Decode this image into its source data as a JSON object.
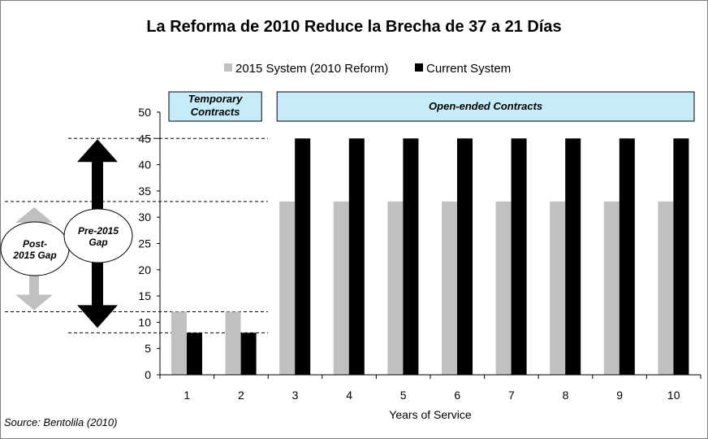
{
  "chart_data": {
    "type": "bar",
    "title": "La Reforma de 2010 Reduce la Brecha de 37 a 21 Días",
    "xlabel": "Years of Service",
    "ylabel": "",
    "categories": [
      "1",
      "2",
      "3",
      "4",
      "5",
      "6",
      "7",
      "8",
      "9",
      "10"
    ],
    "series": [
      {
        "name": "2015 System (2010 Reform)",
        "color": "#c0c0c0",
        "values": [
          12,
          12,
          33,
          33,
          33,
          33,
          33,
          33,
          33,
          33
        ]
      },
      {
        "name": "Current System",
        "color": "#000000",
        "values": [
          8,
          8,
          45,
          45,
          45,
          45,
          45,
          45,
          45,
          45
        ]
      }
    ],
    "ylim": [
      0,
      50
    ],
    "yticks": [
      0,
      5,
      10,
      15,
      20,
      25,
      30,
      35,
      40,
      45,
      50
    ],
    "legend": "top",
    "grid": false,
    "bands": [
      {
        "label_lines": [
          "Temporary",
          "Contracts"
        ],
        "categories": [
          "1",
          "2"
        ],
        "color": "#c6ecfa"
      },
      {
        "label_lines": [
          "Open-ended Contracts"
        ],
        "categories": [
          "3",
          "10"
        ],
        "color": "#c6ecfa"
      }
    ],
    "annotations": {
      "pre_gap": {
        "label_lines": [
          "Pre-2015",
          "Gap"
        ],
        "from": 8,
        "to": 45
      },
      "post_gap": {
        "label_lines": [
          "Post-",
          "2015 Gap"
        ],
        "from": 12,
        "to": 33
      }
    }
  },
  "source": "Source: Bentolila (2010)"
}
